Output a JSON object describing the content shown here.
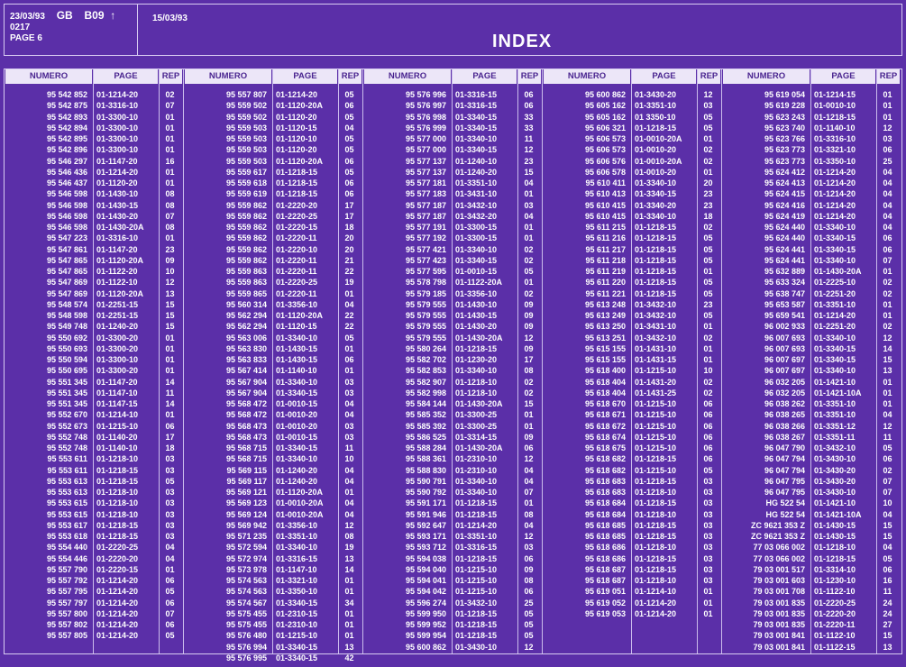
{
  "header": {
    "date1": "23/03/93",
    "country": "GB",
    "code": "B09",
    "arrow": "↑",
    "number": "0217",
    "page_label": "PAGE 6",
    "date2": "15/03/93",
    "title": "INDEX"
  },
  "columns": {
    "numero": "NUMERO",
    "page": "PAGE",
    "rep": "REP"
  },
  "blocks": [
    {
      "numero": [
        "95 542 852",
        "95 542 875",
        "95 542 893",
        "95 542 894",
        "95 542 895",
        "95 542 896",
        "95 546 297",
        "95 546 436",
        "95 546 437",
        "95 546 598",
        "95 546 598",
        "95 546 598",
        "95 546 598",
        "95 547 223",
        "95 547 861",
        "95 547 865",
        "95 547 865",
        "95 547 869",
        "95 547 869",
        "95 548 574",
        "95 548 598",
        "95 549 748",
        "95 550 692",
        "95 550 693",
        "95 550 594",
        "95 550 695",
        "95 551 345",
        "95 551 345",
        "95 551 345",
        "95 552 670",
        "95 552 673",
        "95 552 748",
        "95 552 748",
        "95 553 611",
        "95 553 611",
        "95 553 613",
        "95 553 613",
        "95 553 615",
        "95 553 615",
        "95 553 617",
        "95 553 618",
        "95 554 440",
        "95 554 446",
        "95 557 790",
        "95 557 792",
        "95 557 795",
        "95 557 797",
        "95 557 800",
        "95 557 802",
        "95 557 805"
      ],
      "page": [
        "01-1214-20",
        "01-3316-10",
        "01-3300-10",
        "01-3300-10",
        "01-3300-10",
        "01-3300-10",
        "01-1147-20",
        "01-1214-20",
        "01-1120-20",
        "01-1430-10",
        "01-1430-15",
        "01-1430-20",
        "01-1430-20A",
        "01-3316-10",
        "01-1147-20",
        "01-1120-20A",
        "01-1122-20",
        "01-1122-10",
        "01-1120-20A",
        "01-2251-15",
        "01-2251-15",
        "01-1240-20",
        "01-3300-20",
        "01-3300-20",
        "01-3300-10",
        "01-3300-20",
        "01-1147-20",
        "01-1147-10",
        "01-1147-15",
        "01-1214-10",
        "01-1215-10",
        "01-1140-20",
        "01-1140-10",
        "01-1218-10",
        "01-1218-15",
        "01-1218-15",
        "01-1218-10",
        "01-1218-10",
        "01-1218-10",
        "01-1218-15",
        "01-1218-15",
        "01-2220-25",
        "01-2220-20",
        "01-2220-15",
        "01-1214-20",
        "01-1214-20",
        "01-1214-20",
        "01-1214-20",
        "01-1214-20",
        "01-1214-20"
      ],
      "rep": [
        "02",
        "07",
        "01",
        "01",
        "01",
        "01",
        "16",
        "01",
        "01",
        "08",
        "08",
        "07",
        "08",
        "01",
        "23",
        "09",
        "10",
        "12",
        "13",
        "15",
        "15",
        "15",
        "01",
        "01",
        "01",
        "01",
        "14",
        "11",
        "14",
        "01",
        "06",
        "17",
        "18",
        "03",
        "03",
        "05",
        "03",
        "03",
        "03",
        "03",
        "03",
        "04",
        "04",
        "01",
        "06",
        "05",
        "06",
        "07",
        "06",
        "05"
      ]
    },
    {
      "numero": [
        "95 557 807",
        "95 559 502",
        "95 559 502",
        "95 559 503",
        "95 559 503",
        "95 559 503",
        "95 559 503",
        "95 559 617",
        "95 559 618",
        "95 559 619",
        "95 559 862",
        "95 559 862",
        "95 559 862",
        "95 559 862",
        "95 559 862",
        "95 559 862",
        "95 559 863",
        "95 559 863",
        "95 559 865",
        "95 560 314",
        "95 562 294",
        "95 562 294",
        "95 563 006",
        "95 563 830",
        "95 563 833",
        "95 567 414",
        "95 567 904",
        "95 567 904",
        "95 568 472",
        "95 568 472",
        "95 568 473",
        "95 568 473",
        "95 568 715",
        "95 568 715",
        "95 569 115",
        "95 569 117",
        "95 569 121",
        "95 569 123",
        "95 569 124",
        "95 569 942",
        "95 571 235",
        "95 572 594",
        "95 572 974",
        "95 573 978",
        "95 574 563",
        "95 574 563",
        "95 574 567",
        "95 575 455",
        "95 575 455",
        "95 576 480",
        "95 576 994",
        "95 576 995"
      ],
      "page": [
        "01-1214-20",
        "01-1120-20A",
        "01-1120-20",
        "01-1120-15",
        "01-1120-10",
        "01-1120-20",
        "01-1120-20A",
        "01-1218-15",
        "01-1218-15",
        "01-1218-15",
        "01-2220-20",
        "01-2220-25",
        "01-2220-15",
        "01-2220-11",
        "01-2220-10",
        "01-2220-11",
        "01-2220-11",
        "01-2220-25",
        "01-2220-11",
        "01-3356-10",
        "01-1120-20A",
        "01-1120-15",
        "01-3340-10",
        "01-1430-15",
        "01-1430-15",
        "01-1140-10",
        "01-3340-10",
        "01-3340-15",
        "01-0010-15",
        "01-0010-20",
        "01-0010-20",
        "01-0010-15",
        "01-3340-15",
        "01-3340-10",
        "01-1240-20",
        "01-1240-20",
        "01-1120-20A",
        "01-0010-20A",
        "01-0010-20A",
        "01-3356-10",
        "01-3351-10",
        "01-3340-10",
        "01-3316-15",
        "01-1147-10",
        "01-3321-10",
        "01-3350-10",
        "01-3340-15",
        "01-2310-15",
        "01-2310-10",
        "01-1215-10",
        "01-3340-15",
        "01-3340-15"
      ],
      "rep": [
        "05",
        "06",
        "05",
        "04",
        "05",
        "05",
        "06",
        "05",
        "06",
        "06",
        "17",
        "17",
        "18",
        "20",
        "20",
        "21",
        "22",
        "19",
        "01",
        "04",
        "22",
        "22",
        "05",
        "01",
        "06",
        "01",
        "03",
        "03",
        "04",
        "04",
        "03",
        "03",
        "11",
        "10",
        "04",
        "04",
        "01",
        "04",
        "04",
        "12",
        "08",
        "19",
        "13",
        "14",
        "01",
        "01",
        "34",
        "01",
        "01",
        "01",
        "13",
        "42"
      ]
    },
    {
      "numero": [
        "95 576 996",
        "95 576 997",
        "95 576 998",
        "95 576 999",
        "95 577 000",
        "95 577 000",
        "95 577 137",
        "95 577 137",
        "95 577 181",
        "95 577 183",
        "95 577 187",
        "95 577 187",
        "95 577 191",
        "95 577 192",
        "95 577 421",
        "95 577 423",
        "95 577 595",
        "95 578 798",
        "95 579 185",
        "95 579 555",
        "95 579 555",
        "95 579 555",
        "95 579 555",
        "95 580 264",
        "95 582 702",
        "95 582 853",
        "95 582 907",
        "95 582 998",
        "95 584 144",
        "95 585 352",
        "95 585 392",
        "95 586 525",
        "95 588 284",
        "95 588 361",
        "95 588 830",
        "95 590 791",
        "95 590 792",
        "95 591 171",
        "95 591 946",
        "95 592 647",
        "95 593 171",
        "95 593 712",
        "95 594 038",
        "95 594 040",
        "95 594 041",
        "95 594 042",
        "95 596 274",
        "95 599 950",
        "95 599 952",
        "95 599 954",
        "95 600 862"
      ],
      "page": [
        "01-3316-15",
        "01-3316-15",
        "01-3340-15",
        "01-3340-15",
        "01-3340-10",
        "01-3340-15",
        "01-1240-10",
        "01-1240-20",
        "01-3351-10",
        "01-3431-10",
        "01-3432-10",
        "01-3432-20",
        "01-3300-15",
        "01-3300-15",
        "01-3340-10",
        "01-3340-15",
        "01-0010-15",
        "01-1122-20A",
        "01-3356-10",
        "01-1430-10",
        "01-1430-15",
        "01-1430-20",
        "01-1430-20A",
        "01-1218-15",
        "01-1230-20",
        "01-3340-10",
        "01-1218-10",
        "01-1218-10",
        "01-1430-20A",
        "01-3300-25",
        "01-3300-25",
        "01-3314-15",
        "01-1430-20A",
        "01-2310-10",
        "01-2310-10",
        "01-3340-10",
        "01-3340-10",
        "01-1218-15",
        "01-1218-15",
        "01-1214-20",
        "01-3351-10",
        "01-3316-15",
        "01-1218-15",
        "01-1215-10",
        "01-1215-10",
        "01-1215-10",
        "01-3432-10",
        "01-1218-15",
        "01-1218-15",
        "01-1218-15",
        "01-3430-10"
      ],
      "rep": [
        "06",
        "06",
        "33",
        "33",
        "11",
        "12",
        "23",
        "15",
        "04",
        "01",
        "03",
        "04",
        "01",
        "01",
        "02",
        "02",
        "05",
        "01",
        "02",
        "09",
        "09",
        "09",
        "12",
        "09",
        "17",
        "08",
        "02",
        "02",
        "15",
        "01",
        "01",
        "09",
        "06",
        "12",
        "04",
        "04",
        "07",
        "01",
        "08",
        "04",
        "12",
        "03",
        "06",
        "09",
        "08",
        "06",
        "25",
        "05",
        "05",
        "05",
        "12"
      ]
    },
    {
      "numero": [
        "95 600 862",
        "95 605 162",
        "95 605 162",
        "95 606 321",
        "95 606 573",
        "95 606 573",
        "95 606 576",
        "95 606 578",
        "95 610 411",
        "95 610 413",
        "95 610 415",
        "95 610 415",
        "95 611 215",
        "95 611 216",
        "95 611 217",
        "95 611 218",
        "95 611 219",
        "95 611 220",
        "95 611 221",
        "95 613 248",
        "95 613 249",
        "95 613 250",
        "95 613 251",
        "95 615 155",
        "95 615 155",
        "95 618 400",
        "95 618 404",
        "95 618 404",
        "95 618 670",
        "95 618 671",
        "95 618 672",
        "95 618 674",
        "95 618 675",
        "95 618 682",
        "95 618 682",
        "95 618 683",
        "95 618 683",
        "95 618 684",
        "95 618 684",
        "95 618 685",
        "95 618 685",
        "95 618 686",
        "95 618 686",
        "95 618 687",
        "95 618 687",
        "95 619 051",
        "95 619 052",
        "95 619 053"
      ],
      "page": [
        "01-3430-20",
        "01-3351-10",
        "01 3350-10",
        "01-1218-15",
        "01-0010-20A",
        "01-0010-20",
        "01-0010-20A",
        "01-0010-20",
        "01-3340-10",
        "01-3340-15",
        "01-3340-20",
        "01-3340-10",
        "01-1218-15",
        "01-1218-15",
        "01-1218-15",
        "01-1218-15",
        "01-1218-15",
        "01-1218-15",
        "01-1218-15",
        "01-3432-10",
        "01-3432-10",
        "01-3431-10",
        "01-3432-10",
        "01-1431-10",
        "01-1431-15",
        "01-1215-10",
        "01-1431-20",
        "01-1431-25",
        "01-1215-10",
        "01-1215-10",
        "01-1215-10",
        "01-1215-10",
        "01-1215-10",
        "01-1218-15",
        "01-1215-10",
        "01-1218-15",
        "01-1218-10",
        "01-1218-15",
        "01-1218-10",
        "01-1218-15",
        "01-1218-15",
        "01-1218-10",
        "01-1218-15",
        "01-1218-15",
        "01-1218-10",
        "01-1214-10",
        "01-1214-20",
        "01-1214-20"
      ],
      "rep": [
        "12",
        "03",
        "05",
        "05",
        "01",
        "02",
        "02",
        "01",
        "20",
        "23",
        "23",
        "18",
        "02",
        "05",
        "05",
        "05",
        "01",
        "05",
        "05",
        "23",
        "05",
        "01",
        "02",
        "01",
        "01",
        "10",
        "02",
        "02",
        "06",
        "06",
        "06",
        "06",
        "06",
        "06",
        "05",
        "03",
        "03",
        "03",
        "03",
        "03",
        "03",
        "03",
        "03",
        "03",
        "03",
        "01",
        "01",
        "01"
      ]
    },
    {
      "numero": [
        "95 619 054",
        "95 619 228",
        "95 623 243",
        "95 623 740",
        "95 623 766",
        "95 623 773",
        "95 623 773",
        "95 624 412",
        "95 624 413",
        "95 624 415",
        "95 624 416",
        "95 624 419",
        "95 624 440",
        "95 624 440",
        "95 624 441",
        "95 624 441",
        "95 632 889",
        "95 633 324",
        "95 638 747",
        "95 653 587",
        "95 659 541",
        "96 002 933",
        "96 007 693",
        "96 007 693",
        "96 007 697",
        "96 007 697",
        "96 032 205",
        "96 032 205",
        "96 038 262",
        "96 038 265",
        "96 038 266",
        "96 038 267",
        "96 047 790",
        "96 047 794",
        "96 047 794",
        "96 047 795",
        "96 047 795",
        "HG 522 54",
        "HG 522 54",
        "ZC 9621 353 Z",
        "ZC 9621 353 Z",
        "77 03 066 002",
        "77 03 066 002",
        "79 03 001 517",
        "79 03 001 603",
        "79 03 001 708",
        "79 03 001 835",
        "79 03 001 835",
        "79 03 001 835",
        "79 03 001 841",
        "79 03 001 841"
      ],
      "page": [
        "01-1214-15",
        "01-0010-10",
        "01-1218-15",
        "01-1140-10",
        "01-3316-10",
        "01-3321-10",
        "01-3350-10",
        "01-1214-20",
        "01-1214-20",
        "01-1214-20",
        "01-1214-20",
        "01-1214-20",
        "01-3340-10",
        "01-3340-15",
        "01-3340-15",
        "01-3340-10",
        "01-1430-20A",
        "01-2225-10",
        "01-2251-20",
        "01-3351-10",
        "01-1214-20",
        "01-2251-20",
        "01-3340-10",
        "01-3340-15",
        "01-3340-15",
        "01-3340-10",
        "01-1421-10",
        "01-1421-10A",
        "01-3351-10",
        "01-3351-10",
        "01-3351-12",
        "01-3351-11",
        "01-3432-10",
        "01-3430-10",
        "01-3430-20",
        "01-3430-20",
        "01-3430-10",
        "01-1421-10",
        "01-1421-10A",
        "01-1430-15",
        "01-1430-15",
        "01-1218-10",
        "01-1218-15",
        "01-3314-10",
        "01-1230-10",
        "01-1122-10",
        "01-2220-25",
        "01-2220-20",
        "01-2220-11",
        "01-1122-10",
        "01-1122-15"
      ],
      "rep": [
        "01",
        "01",
        "01",
        "12",
        "03",
        "06",
        "25",
        "04",
        "04",
        "04",
        "04",
        "04",
        "04",
        "06",
        "06",
        "07",
        "01",
        "02",
        "02",
        "01",
        "01",
        "02",
        "12",
        "14",
        "15",
        "13",
        "01",
        "01",
        "01",
        "04",
        "12",
        "11",
        "05",
        "06",
        "02",
        "07",
        "07",
        "10",
        "04",
        "15",
        "15",
        "04",
        "05",
        "06",
        "16",
        "11",
        "24",
        "24",
        "27",
        "15",
        "13"
      ]
    }
  ]
}
